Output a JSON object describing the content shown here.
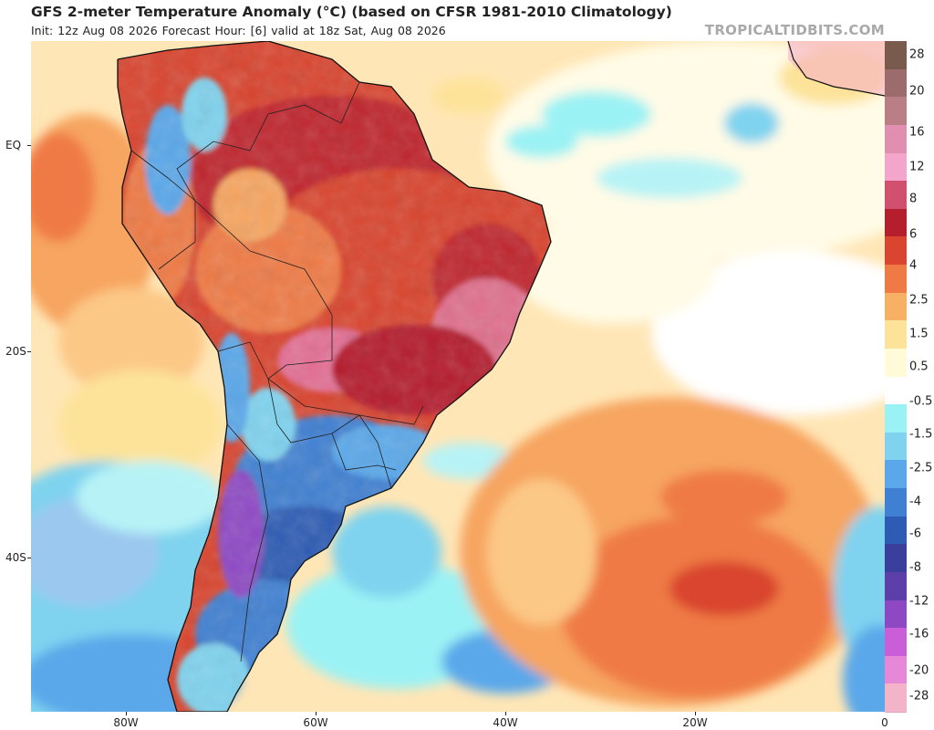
{
  "header": {
    "title": "GFS 2-meter Temperature Anomaly (°C) (based on CFSR 1981-2010 Climatology)",
    "subtitle": "Init: 12z Aug 08 2026   Forecast Hour: [6]   valid at 18z Sat, Aug 08 2026",
    "brand": "TROPICALTIDBITS.COM"
  },
  "axes": {
    "y_labels": [
      "EQ",
      "20S",
      "40S"
    ],
    "x_labels": [
      "80W",
      "60W",
      "40W",
      "20W",
      "0"
    ]
  },
  "colorbar": {
    "labels": [
      "28",
      "20",
      "16",
      "12",
      "8",
      "6",
      "4",
      "2.5",
      "1.5",
      "0.5",
      "-0.5",
      "-1.5",
      "-2.5",
      "-4",
      "-6",
      "-8",
      "-12",
      "-16",
      "-20",
      "-28"
    ],
    "colors": [
      "#7a5a4c",
      "#9c6b6b",
      "#b97e86",
      "#e08fb0",
      "#f3a5cc",
      "#d2506f",
      "#b51f2d",
      "#d9452f",
      "#ef7a45",
      "#f7b064",
      "#fde39a",
      "#fffad8",
      "#ffffff",
      "#9bf2f4",
      "#7fd3ef",
      "#5aa8ea",
      "#3f80d2",
      "#2e5bb4",
      "#3a3f9c",
      "#5c3fa9",
      "#8e48c4",
      "#c95ed8",
      "#e687d8",
      "#f3b3c8"
    ]
  }
}
